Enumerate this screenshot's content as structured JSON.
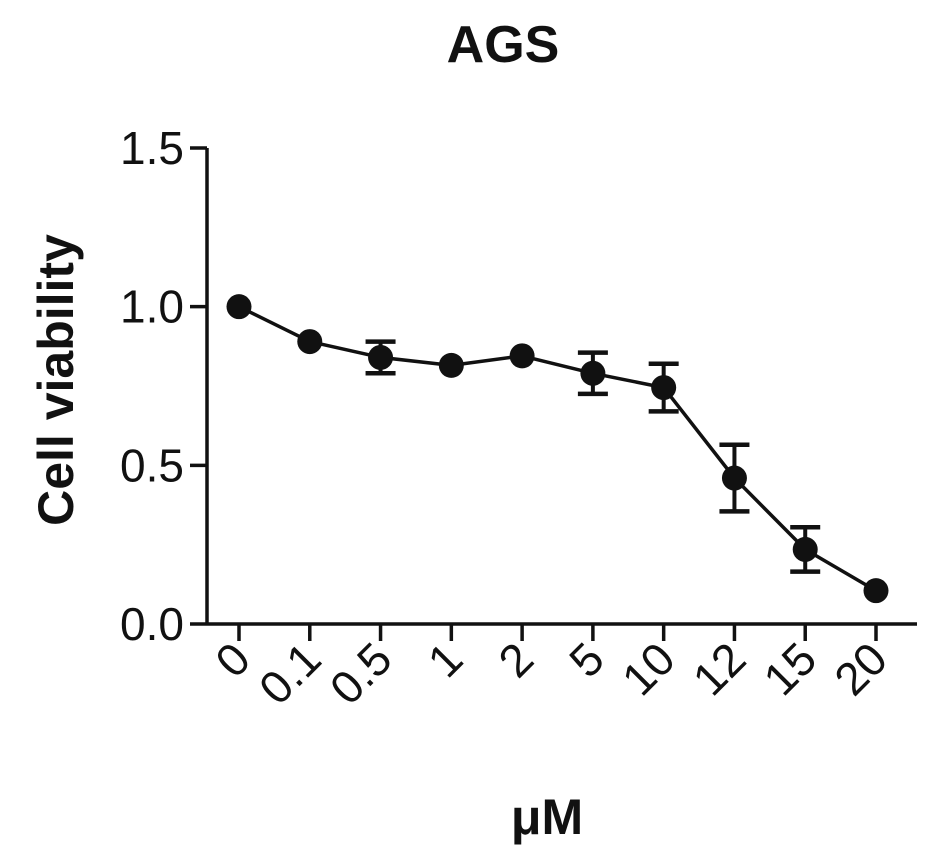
{
  "chart_data": {
    "type": "line",
    "title": "AGS",
    "xlabel": "μM",
    "ylabel": "Cell viability",
    "categories": [
      "0",
      "0.1",
      "0.5",
      "1",
      "2",
      "5",
      "10",
      "12",
      "15",
      "20"
    ],
    "series": [
      {
        "values": [
          1.0,
          0.89,
          0.84,
          0.815,
          0.845,
          0.79,
          0.745,
          0.46,
          0.235,
          0.105
        ],
        "errors": [
          0.0,
          0.0,
          0.05,
          0.0,
          0.0,
          0.065,
          0.075,
          0.105,
          0.07,
          0.0
        ],
        "marker": "circle",
        "color": "#111111"
      }
    ],
    "ylim": [
      0,
      1.5
    ],
    "yticks": [
      "0.0",
      "0.5",
      "1.0",
      "1.5"
    ],
    "grid": false,
    "legend": "none"
  }
}
